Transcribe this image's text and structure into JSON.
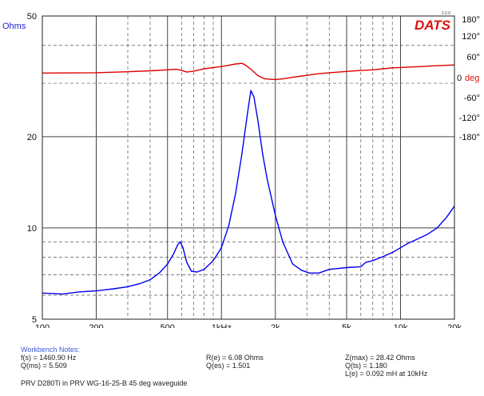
{
  "chart_data": {
    "type": "line",
    "brand": "DATS",
    "brand_version": "2.0.0",
    "x_scale": "log",
    "xlim": [
      100,
      20000
    ],
    "x_ticks": [
      {
        "v": 100,
        "label": "100"
      },
      {
        "v": 200,
        "label": "200"
      },
      {
        "v": 500,
        "label": "500"
      },
      {
        "v": 1000,
        "label": "1kHz"
      },
      {
        "v": 2000,
        "label": "2k"
      },
      {
        "v": 5000,
        "label": "5k"
      },
      {
        "v": 10000,
        "label": "10k"
      },
      {
        "v": 20000,
        "label": "20k"
      }
    ],
    "y_left": {
      "label": "Ohms",
      "scale": "log",
      "lim": [
        5,
        50
      ],
      "ticks": [
        {
          "v": 50,
          "label": "50"
        },
        {
          "v": 20,
          "label": "20"
        },
        {
          "v": 10,
          "label": "10"
        },
        {
          "v": 5,
          "label": "5"
        }
      ]
    },
    "y_right": {
      "label": "deg",
      "lim": [
        -180,
        180
      ],
      "ticks": [
        {
          "v": 180,
          "label": "180°"
        },
        {
          "v": 120,
          "label": "120°"
        },
        {
          "v": 60,
          "label": "60°"
        },
        {
          "v": 0,
          "label": "0"
        },
        {
          "v": -60,
          "label": "-60°"
        },
        {
          "v": -120,
          "label": "-120°"
        },
        {
          "v": -180,
          "label": "-180°"
        }
      ]
    },
    "grid": true,
    "series": [
      {
        "name": "Impedance",
        "axis": "left",
        "color": "#0000ee",
        "points": [
          [
            100,
            6.1
          ],
          [
            130,
            6.05
          ],
          [
            160,
            6.15
          ],
          [
            200,
            6.2
          ],
          [
            250,
            6.3
          ],
          [
            300,
            6.4
          ],
          [
            350,
            6.55
          ],
          [
            400,
            6.75
          ],
          [
            450,
            7.1
          ],
          [
            500,
            7.6
          ],
          [
            540,
            8.2
          ],
          [
            570,
            8.8
          ],
          [
            590,
            9.0
          ],
          [
            610,
            8.6
          ],
          [
            640,
            7.7
          ],
          [
            680,
            7.2
          ],
          [
            730,
            7.15
          ],
          [
            800,
            7.3
          ],
          [
            900,
            7.8
          ],
          [
            1000,
            8.6
          ],
          [
            1100,
            10.2
          ],
          [
            1200,
            13.0
          ],
          [
            1300,
            17.5
          ],
          [
            1400,
            24.0
          ],
          [
            1460,
            28.4
          ],
          [
            1520,
            27.0
          ],
          [
            1600,
            22.5
          ],
          [
            1700,
            17.5
          ],
          [
            1800,
            14.5
          ],
          [
            2000,
            11.0
          ],
          [
            2200,
            9.0
          ],
          [
            2500,
            7.6
          ],
          [
            2800,
            7.25
          ],
          [
            3100,
            7.1
          ],
          [
            3500,
            7.1
          ],
          [
            4000,
            7.3
          ],
          [
            5000,
            7.4
          ],
          [
            6000,
            7.45
          ],
          [
            6400,
            7.7
          ],
          [
            7000,
            7.8
          ],
          [
            8000,
            8.05
          ],
          [
            9000,
            8.3
          ],
          [
            10000,
            8.6
          ],
          [
            11000,
            8.9
          ],
          [
            12000,
            9.1
          ],
          [
            14000,
            9.5
          ],
          [
            16000,
            10.0
          ],
          [
            18000,
            10.8
          ],
          [
            20000,
            11.8
          ]
        ]
      },
      {
        "name": "Phase",
        "axis": "right",
        "color": "#dd0000",
        "points": [
          [
            100,
            14
          ],
          [
            200,
            15
          ],
          [
            300,
            18
          ],
          [
            400,
            21
          ],
          [
            500,
            24
          ],
          [
            560,
            26
          ],
          [
            600,
            22
          ],
          [
            640,
            17
          ],
          [
            700,
            20
          ],
          [
            800,
            27
          ],
          [
            900,
            31
          ],
          [
            1000,
            34
          ],
          [
            1100,
            38
          ],
          [
            1200,
            42
          ],
          [
            1300,
            44
          ],
          [
            1350,
            40
          ],
          [
            1460,
            26
          ],
          [
            1600,
            6
          ],
          [
            1750,
            -4
          ],
          [
            2000,
            -6
          ],
          [
            2200,
            -4
          ],
          [
            2500,
            1
          ],
          [
            3000,
            7
          ],
          [
            3500,
            12
          ],
          [
            4000,
            15
          ],
          [
            5000,
            19
          ],
          [
            6000,
            22
          ],
          [
            7000,
            24
          ],
          [
            8000,
            27
          ],
          [
            9000,
            30
          ],
          [
            10000,
            31
          ],
          [
            12000,
            33
          ],
          [
            15000,
            36
          ],
          [
            20000,
            39
          ]
        ]
      }
    ]
  },
  "notes": {
    "heading": "Workbench Notes:",
    "fs": "f(s) = 1460.90 Hz",
    "qms": "Q(ms) = 5.509",
    "re": "R(e) = 6.08 Ohms",
    "qes": "Q(es) = 1.501",
    "zmax": "Z(max) = 28.42 Ohms",
    "qts": "Q(ts) = 1.180",
    "le": "L(e) = 0.092 mH at 10kHz",
    "description": "PRV D280Ti in PRV WG-16-25-B 45 deg waveguide"
  }
}
